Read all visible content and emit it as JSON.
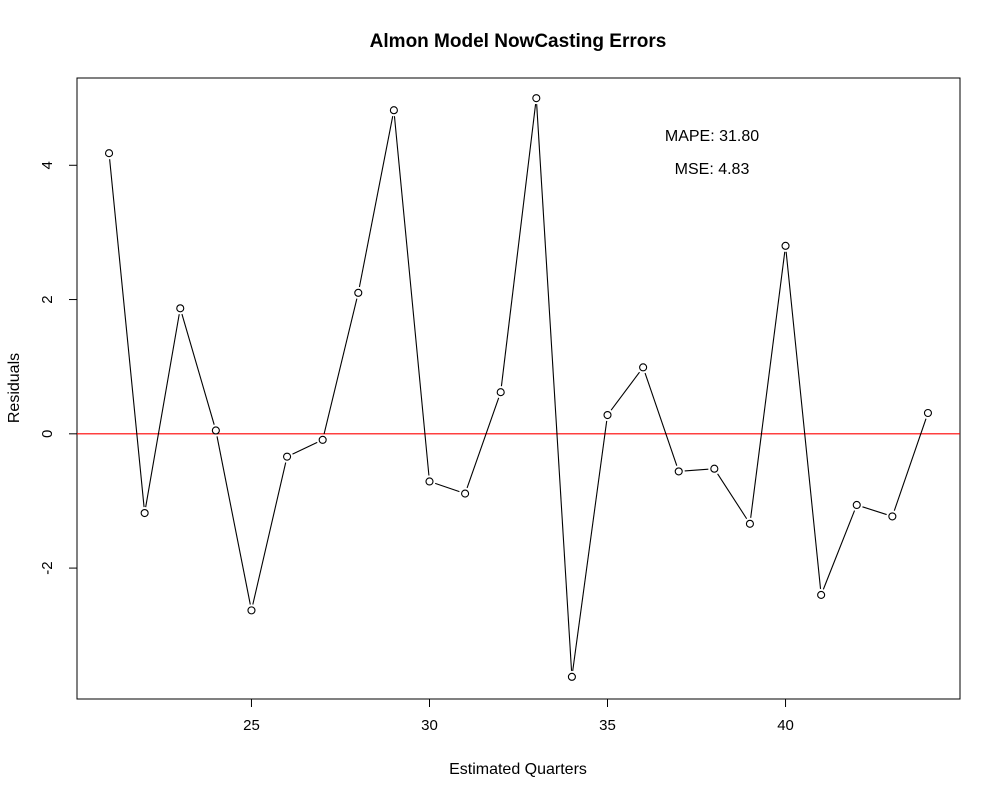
{
  "chart_data": {
    "type": "line",
    "title": "Almon Model NowCasting Errors",
    "xlabel": "Estimated Quarters",
    "ylabel": "Residuals",
    "xlim": [
      20.1,
      44.9
    ],
    "ylim": [
      -3.95,
      5.3
    ],
    "x_ticks": [
      25,
      30,
      35,
      40
    ],
    "y_ticks": [
      -2,
      0,
      2,
      4
    ],
    "grid": false,
    "legend": "none",
    "series": [
      {
        "color": "#000000",
        "marker": "open-circle",
        "points": [
          {
            "x": 21,
            "y": 4.18
          },
          {
            "x": 22,
            "y": -1.18
          },
          {
            "x": 23,
            "y": 1.87
          },
          {
            "x": 24,
            "y": 0.05
          },
          {
            "x": 25,
            "y": -2.63
          },
          {
            "x": 26,
            "y": -0.34
          },
          {
            "x": 27,
            "y": -0.09
          },
          {
            "x": 28,
            "y": 2.1
          },
          {
            "x": 29,
            "y": 4.82
          },
          {
            "x": 30,
            "y": -0.71
          },
          {
            "x": 31,
            "y": -0.89
          },
          {
            "x": 32,
            "y": 0.62
          },
          {
            "x": 33,
            "y": 5.0
          },
          {
            "x": 34,
            "y": -3.62
          },
          {
            "x": 35,
            "y": 0.28
          },
          {
            "x": 36,
            "y": 0.99
          },
          {
            "x": 37,
            "y": -0.56
          },
          {
            "x": 38,
            "y": -0.52
          },
          {
            "x": 39,
            "y": -1.34
          },
          {
            "x": 40,
            "y": 2.8
          },
          {
            "x": 41,
            "y": -2.4
          },
          {
            "x": 42,
            "y": -1.06
          },
          {
            "x": 43,
            "y": -1.23
          },
          {
            "x": 44,
            "y": 0.31
          }
        ]
      }
    ],
    "reference_line": {
      "y": 0,
      "color": "#ff0000"
    },
    "annotations": [
      {
        "text": "MAPE: 31.80"
      },
      {
        "text": "MSE: 4.83"
      }
    ]
  }
}
